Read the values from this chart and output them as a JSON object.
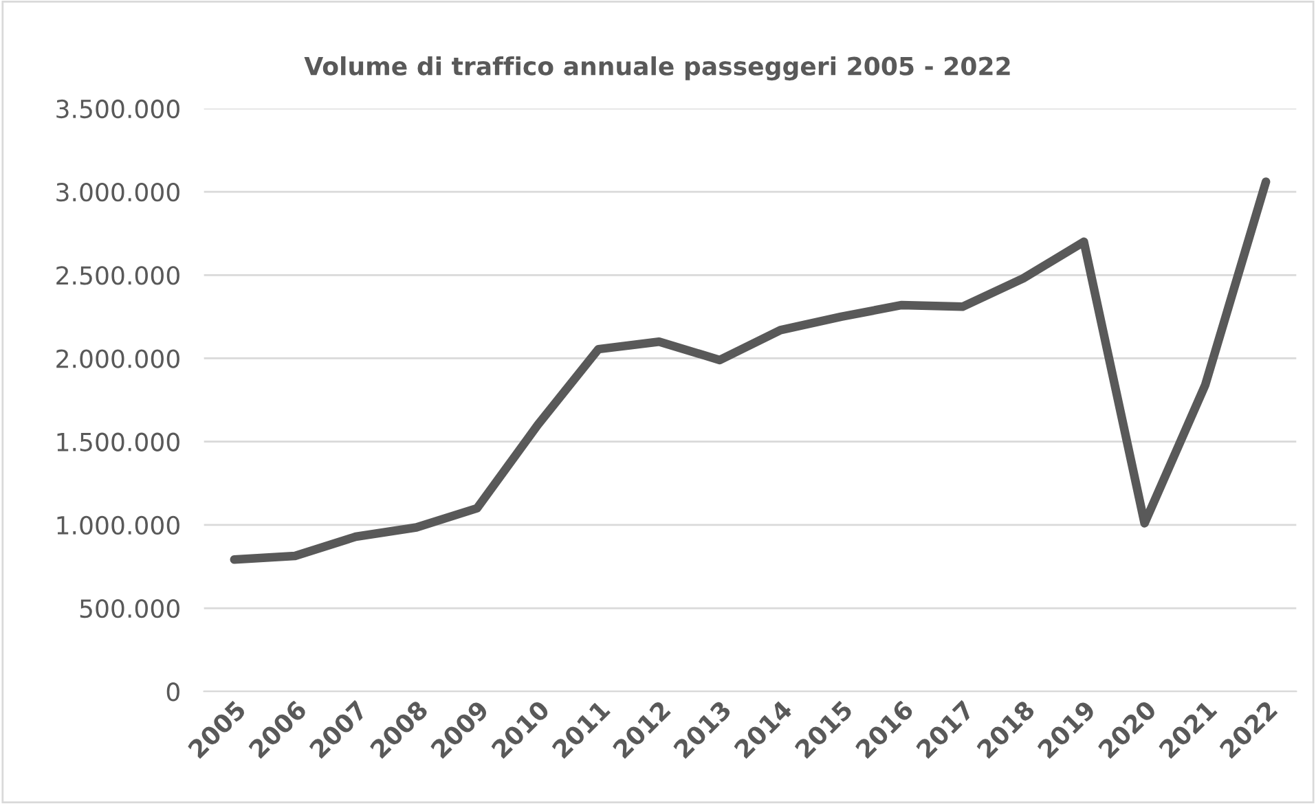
{
  "chart_data": {
    "type": "line",
    "title": "Volume di traffico annuale passeggeri 2005 - 2022",
    "categories": [
      "2005",
      "2006",
      "2007",
      "2008",
      "2009",
      "2010",
      "2011",
      "2012",
      "2013",
      "2014",
      "2015",
      "2016",
      "2017",
      "2018",
      "2019",
      "2020",
      "2021",
      "2022"
    ],
    "series": [
      {
        "color": "#595959",
        "values": [
          792000,
          814000,
          929000,
          985000,
          1100000,
          1600000,
          2055000,
          2100000,
          1990000,
          2170000,
          2250000,
          2320000,
          2310000,
          2480000,
          2700000,
          1010000,
          1840000,
          3060000
        ]
      }
    ],
    "ylim": [
      0,
      3500000
    ],
    "yticks": [
      {
        "value": 0,
        "label": "0"
      },
      {
        "value": 500000,
        "label": "500.000"
      },
      {
        "value": 1000000,
        "label": "1.000.000"
      },
      {
        "value": 1500000,
        "label": "1.500.000"
      },
      {
        "value": 2000000,
        "label": "2.000.000"
      },
      {
        "value": 2500000,
        "label": "2.500.000"
      },
      {
        "value": 3000000,
        "label": "3.000.000"
      },
      {
        "value": 3500000,
        "label": "3.500.000"
      }
    ],
    "grid": "y",
    "legend": false,
    "marker": "none",
    "line_style": "solid"
  }
}
